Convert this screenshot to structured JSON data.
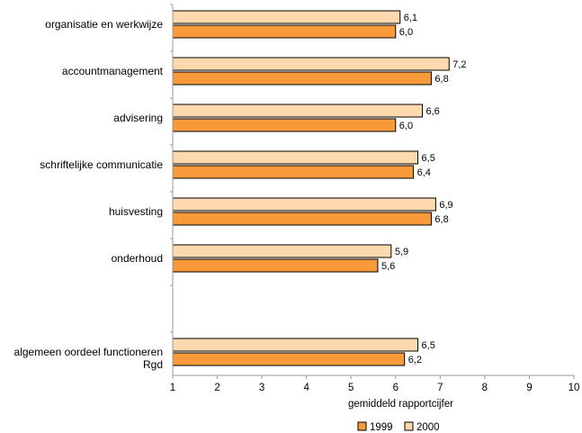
{
  "chart_data": {
    "type": "bar",
    "orientation": "horizontal",
    "categories": [
      "organisatie en werkwijze",
      "accountmanagement",
      "advisering",
      "schriftelijke communicatie",
      "huisvesting",
      "onderhoud",
      "",
      "algemeen oordeel functioneren Rgd"
    ],
    "category_lines": [
      [
        "organisatie en werkwijze"
      ],
      [
        "accountmanagement"
      ],
      [
        "advisering"
      ],
      [
        "schriftelijke communicatie"
      ],
      [
        "huisvesting"
      ],
      [
        "onderhoud"
      ],
      [],
      [
        "algemeen oordeel functioneren",
        "Rgd"
      ]
    ],
    "series": [
      {
        "name": "2000",
        "color": "#FFD9AE",
        "values": [
          6.1,
          7.2,
          6.6,
          6.5,
          6.9,
          5.9,
          null,
          6.5
        ],
        "labels": [
          "6,1",
          "7,2",
          "6,6",
          "6,5",
          "6,9",
          "5,9",
          "",
          "6,5"
        ]
      },
      {
        "name": "1999",
        "color": "#F89A3A",
        "values": [
          6.0,
          6.8,
          6.0,
          6.4,
          6.8,
          5.6,
          null,
          6.2
        ],
        "labels": [
          "6,0",
          "6,8",
          "6,0",
          "6,4",
          "6,8",
          "5,6",
          "",
          "6,2"
        ]
      }
    ],
    "xlim": [
      1,
      10
    ],
    "xticks": [
      "1",
      "2",
      "3",
      "4",
      "5",
      "6",
      "7",
      "8",
      "9",
      "10"
    ],
    "xlabel": "gemiddeld rapportcijfer",
    "ylabel": "",
    "title": "",
    "grid": false,
    "legend": {
      "placement": "bottom-center",
      "items": [
        {
          "name": "1999",
          "color": "#F89A3A"
        },
        {
          "name": "2000",
          "color": "#FFD9AE"
        }
      ]
    }
  }
}
